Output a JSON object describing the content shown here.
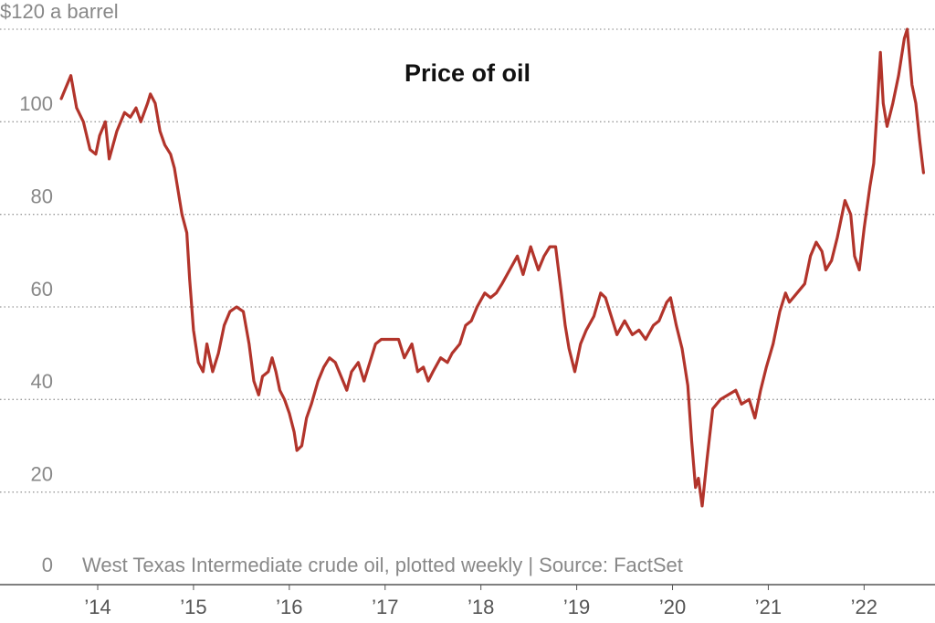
{
  "chart_data": {
    "type": "line",
    "title": "Price of oil",
    "note": "West Texas Intermediate crude oil, plotted weekly | Source: FactSet",
    "color": "#b2342b",
    "grid": true,
    "xlim": [
      2012.98,
      2022.74
    ],
    "xticks": [
      {
        "value": 2014,
        "label": "’14"
      },
      {
        "value": 2015,
        "label": "’15"
      },
      {
        "value": 2016,
        "label": "’16"
      },
      {
        "value": 2017,
        "label": "’17"
      },
      {
        "value": 2018,
        "label": "’18"
      },
      {
        "value": 2019,
        "label": "’19"
      },
      {
        "value": 2020,
        "label": "’20"
      },
      {
        "value": 2021,
        "label": "’21"
      },
      {
        "value": 2022,
        "label": "’22"
      }
    ],
    "ylim": [
      0,
      120
    ],
    "yticks": [
      0,
      20,
      40,
      60,
      80,
      100,
      {
        "value": 120,
        "label": "$120 a barrel"
      }
    ],
    "x": [
      2013.62,
      2013.66,
      2013.72,
      2013.78,
      2013.85,
      2013.92,
      2013.98,
      2014.02,
      2014.08,
      2014.12,
      2014.2,
      2014.28,
      2014.34,
      2014.4,
      2014.45,
      2014.52,
      2014.55,
      2014.6,
      2014.65,
      2014.7,
      2014.76,
      2014.8,
      2014.88,
      2014.93,
      2014.96,
      2015.0,
      2015.05,
      2015.1,
      2015.14,
      2015.2,
      2015.26,
      2015.32,
      2015.38,
      2015.45,
      2015.52,
      2015.58,
      2015.63,
      2015.68,
      2015.72,
      2015.78,
      2015.82,
      2015.86,
      2015.9,
      2015.95,
      2016.0,
      2016.05,
      2016.08,
      2016.13,
      2016.18,
      2016.23,
      2016.3,
      2016.36,
      2016.42,
      2016.48,
      2016.54,
      2016.6,
      2016.65,
      2016.72,
      2016.78,
      2016.84,
      2016.9,
      2016.96,
      2017.05,
      2017.14,
      2017.2,
      2017.28,
      2017.34,
      2017.4,
      2017.45,
      2017.5,
      2017.58,
      2017.65,
      2017.7,
      2017.78,
      2017.84,
      2017.9,
      2017.96,
      2018.04,
      2018.1,
      2018.16,
      2018.22,
      2018.3,
      2018.38,
      2018.44,
      2018.52,
      2018.6,
      2018.66,
      2018.72,
      2018.78,
      2018.84,
      2018.88,
      2018.92,
      2018.98,
      2019.04,
      2019.1,
      2019.18,
      2019.25,
      2019.3,
      2019.36,
      2019.42,
      2019.5,
      2019.58,
      2019.65,
      2019.72,
      2019.8,
      2019.86,
      2019.94,
      2019.98,
      2020.04,
      2020.1,
      2020.16,
      2020.2,
      2020.24,
      2020.27,
      2020.31,
      2020.36,
      2020.42,
      2020.5,
      2020.58,
      2020.66,
      2020.72,
      2020.8,
      2020.86,
      2020.92,
      2020.98,
      2021.05,
      2021.12,
      2021.18,
      2021.22,
      2021.3,
      2021.38,
      2021.44,
      2021.5,
      2021.56,
      2021.6,
      2021.66,
      2021.72,
      2021.8,
      2021.86,
      2021.9,
      2021.95,
      2022.0,
      2022.06,
      2022.1,
      2022.14,
      2022.17,
      2022.2,
      2022.24,
      2022.3,
      2022.36,
      2022.42,
      2022.45,
      2022.5,
      2022.54,
      2022.58,
      2022.62
    ],
    "values": [
      105,
      107,
      110,
      103,
      100,
      94,
      93,
      97,
      100,
      92,
      98,
      102,
      101,
      103,
      100,
      104,
      106,
      104,
      98,
      95,
      93,
      90,
      80,
      76,
      66,
      55,
      48,
      46,
      52,
      46,
      50,
      56,
      59,
      60,
      59,
      52,
      44,
      41,
      45,
      46,
      49,
      46,
      42,
      40,
      37,
      33,
      29,
      30,
      36,
      39,
      44,
      47,
      49,
      48,
      45,
      42,
      46,
      48,
      44,
      48,
      52,
      53,
      53,
      53,
      49,
      52,
      46,
      47,
      44,
      46,
      49,
      48,
      50,
      52,
      56,
      57,
      60,
      63,
      62,
      63,
      65,
      68,
      71,
      67,
      73,
      68,
      71,
      73,
      73,
      63,
      56,
      51,
      46,
      52,
      55,
      58,
      63,
      62,
      58,
      54,
      57,
      54,
      55,
      53,
      56,
      57,
      61,
      62,
      56,
      51,
      43,
      31,
      21,
      23,
      17,
      27,
      38,
      40,
      41,
      42,
      39,
      40,
      36,
      42,
      47,
      52,
      59,
      63,
      61,
      63,
      65,
      71,
      74,
      72,
      68,
      70,
      75,
      83,
      80,
      71,
      68,
      77,
      86,
      91,
      104,
      115,
      104,
      99,
      104,
      110,
      118,
      120,
      108,
      104,
      96,
      89
    ]
  }
}
